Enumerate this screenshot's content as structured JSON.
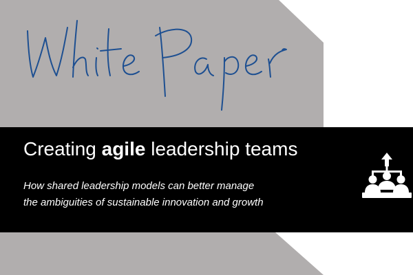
{
  "cover": {
    "script_title": "White Paper",
    "headline_pre": "Creating ",
    "headline_bold": "agile",
    "headline_post": " leadership teams",
    "subtitle_line1": "How shared leadership models can better manage",
    "subtitle_line2": "the ambiguities of sustainable innovation and growth"
  },
  "colors": {
    "gray_shape": "#b1aeae",
    "band": "#000000",
    "script_ink": "#1d4f91",
    "text": "#ffffff"
  },
  "icons": {
    "team": "leadership-team-icon"
  }
}
